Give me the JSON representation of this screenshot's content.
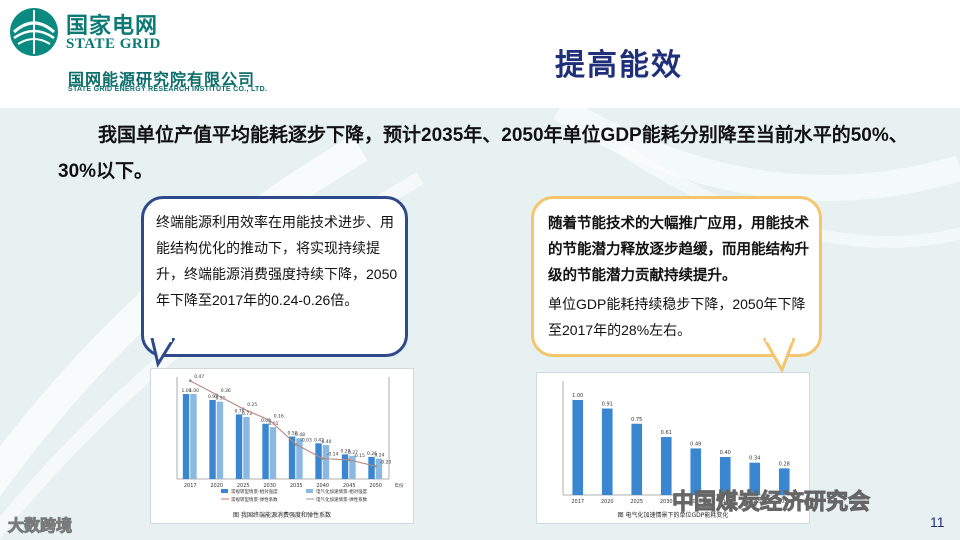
{
  "header": {
    "logo_cn": "国家电网",
    "logo_en": "STATE GRID",
    "institute_cn": "国网能源研究院有限公司",
    "institute_en": "STATE GRID ENERGY RESEARCH INSTITUTE CO., LTD.",
    "title": "提高能效"
  },
  "lead_text": "我国单位产值平均能耗逐步下降，预计2035年、2050年单位GDP能耗分别降至当前水平的50%、30%以下。",
  "callout_left": {
    "text": "终端能源利用效率在用能技术进步、用能结构优化的推动下，将实现持续提升，终端能源消费强度持续下降，2050年下降至2017年的0.24-0.26倍。"
  },
  "callout_right": {
    "bold_text": "随着节能技术的大幅推广应用，用能技术的节能潜力释放逐步趋缓，而用能结构升级的节能潜力贡献持续提升。",
    "normal_text": "单位GDP能耗持续稳步下降，2050年下降至2017年的28%左右。"
  },
  "chart_data": [
    {
      "type": "bar",
      "title": "图 我国终端能源消费强度和弹性系数",
      "categories": [
        "2017",
        "2020",
        "2025",
        "2030",
        "2035",
        "2040",
        "2045",
        "2050"
      ],
      "series": [
        {
          "name": "常规转型情景-相对强度",
          "values": [
            1.0,
            0.93,
            0.76,
            0.65,
            0.5,
            0.42,
            0.29,
            0.26
          ],
          "color": "#3a86d0"
        },
        {
          "name": "电气化加速情景-相对强度",
          "values": [
            1.0,
            0.91,
            0.73,
            0.61,
            0.48,
            0.4,
            0.27,
            0.24
          ],
          "color": "#8ab8e0"
        }
      ],
      "line_series": [
        {
          "name": "常规转型情景-弹性系数",
          "values": [
            0.47,
            0.36,
            0.25,
            0.16,
            -0.03,
            -0.14,
            -0.15,
            -0.2
          ],
          "color": "#e07050"
        },
        {
          "name": "电气化加速情景-弹性系数",
          "values": [
            0.47,
            0.36,
            0.25,
            0.16,
            -0.03,
            -0.14,
            -0.15,
            -0.2
          ],
          "color": "#9a9a9a"
        }
      ],
      "ylim": [
        0,
        1.2
      ],
      "y2lim": [
        -0.3,
        0.5
      ],
      "labels": [
        "1.00",
        "1.00",
        "0.93",
        "0.91",
        "0.76",
        "0.73",
        "0.65",
        "0.61",
        "0.50",
        "0.48",
        "0.42",
        "0.40",
        "0.29",
        "0.27",
        "0.26",
        "0.24"
      ],
      "line_labels": [
        "0.47",
        "0.36",
        "0.25",
        "0.16",
        "-0.03",
        "-0.14",
        "-0.15",
        "-0.20"
      ],
      "x_suffix": "年份"
    },
    {
      "type": "bar",
      "title": "图 电气化加速情景下的单位GDP能耗变化",
      "categories": [
        "2017",
        "2020",
        "2025",
        "2030",
        "2035",
        "2040",
        "2045",
        "2050"
      ],
      "values": [
        1.0,
        0.91,
        0.75,
        0.61,
        0.49,
        0.4,
        0.34,
        0.28
      ],
      "ylim": [
        0,
        1.2
      ],
      "color": "#3a86d0"
    }
  ],
  "watermarks": {
    "left": "大数跨境",
    "right": "中国煤炭经济研究会"
  },
  "page_number": "11"
}
